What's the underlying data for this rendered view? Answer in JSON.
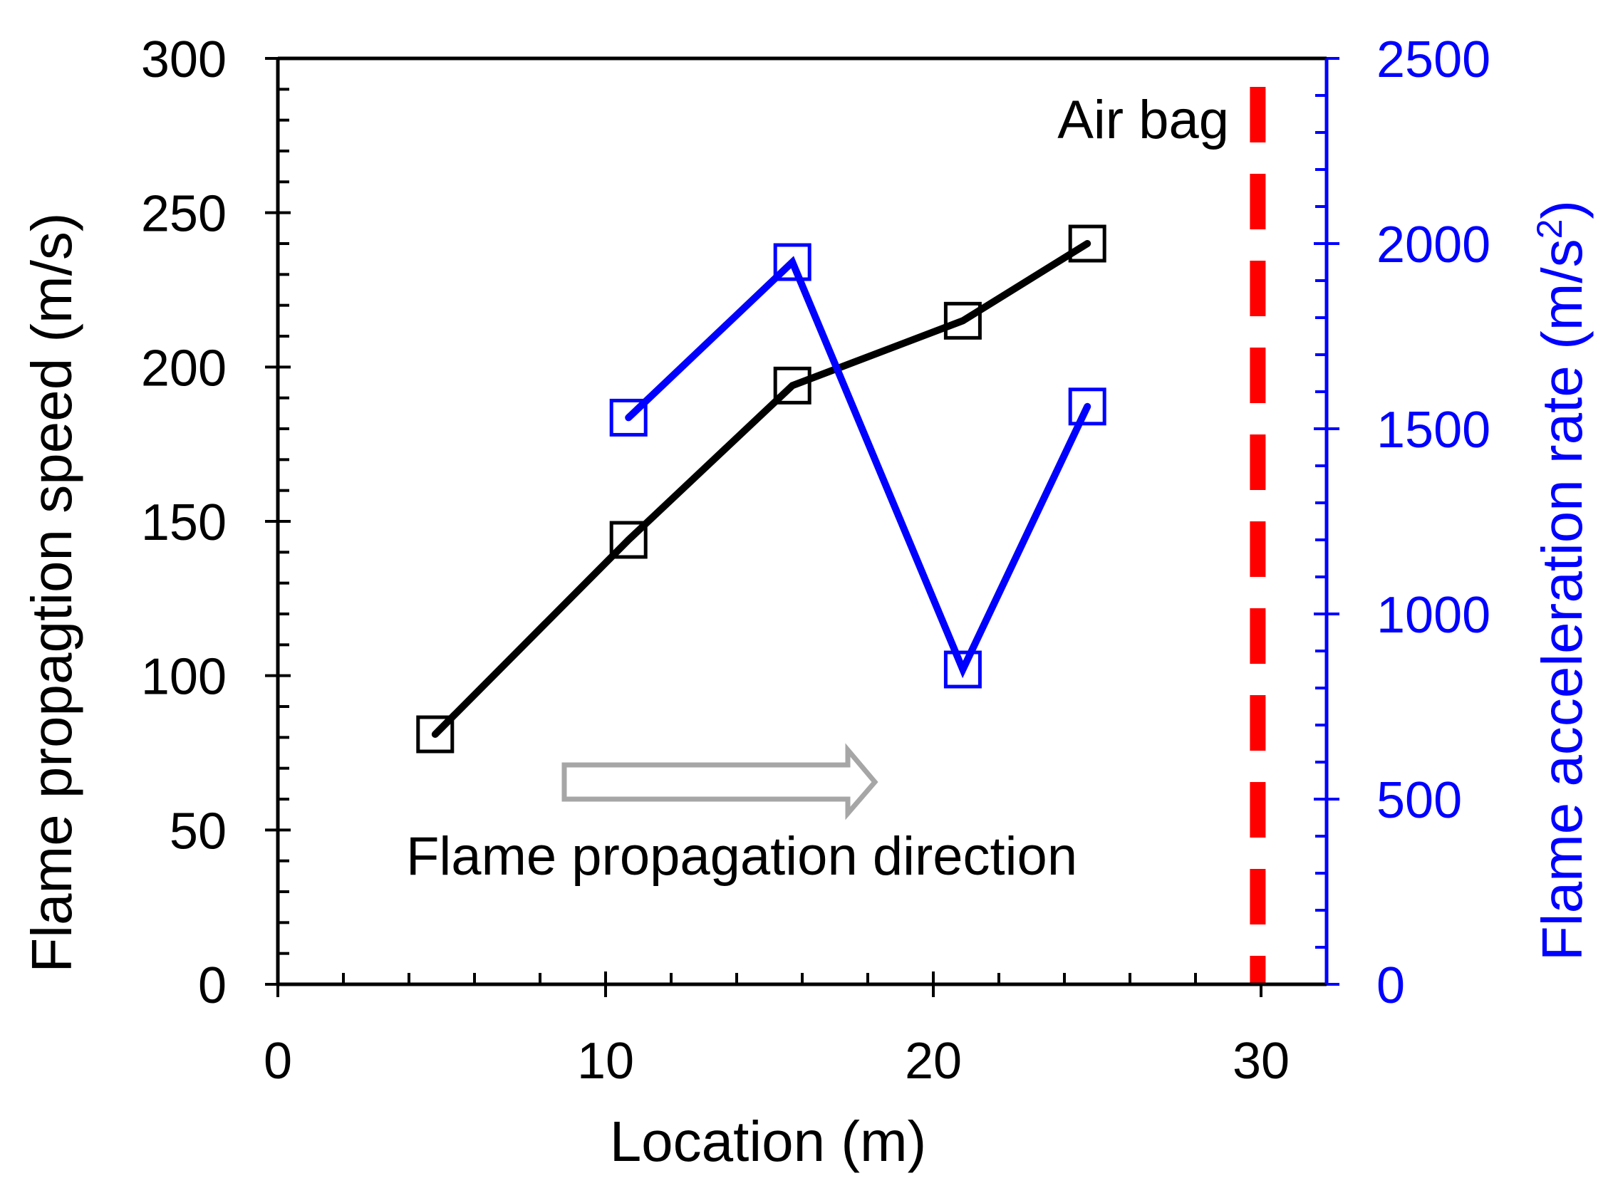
{
  "chart_data": {
    "type": "line",
    "xlabel": "Location (m)",
    "ylabel": "Flame propagtion speed (m/s)",
    "y2label_main": "Flame acceleration rate (m/s",
    "y2label_sup": "2",
    "y2label_close": ")",
    "xlim": [
      0,
      32
    ],
    "ylim": [
      0,
      300
    ],
    "y2lim": [
      0,
      2500
    ],
    "x_ticks": [
      0,
      10,
      20,
      30
    ],
    "y_ticks": [
      0,
      50,
      100,
      150,
      200,
      250,
      300
    ],
    "y2_ticks": [
      0,
      500,
      1000,
      1500,
      2000,
      2500
    ],
    "x_minor_step": 2,
    "y_minor_step": 10,
    "y2_minor_step": 100,
    "grid": false,
    "series": [
      {
        "axis": "left",
        "color": "#000000",
        "marker": "open-square",
        "x": [
          4.8,
          10.7,
          15.7,
          20.9,
          24.7
        ],
        "y": [
          81,
          144,
          194,
          215,
          240
        ]
      },
      {
        "axis": "right",
        "color": "#0000ff",
        "marker": "open-square",
        "x": [
          10.7,
          15.7,
          20.9,
          24.7
        ],
        "y": [
          1530,
          1950,
          850,
          1560
        ]
      }
    ],
    "reference_line": {
      "x": 29.9,
      "color": "#ff0000",
      "style": "dashed",
      "label": "Air bag"
    },
    "annotations": {
      "direction_text": "Flame propagation direction",
      "direction_arrow_color": "#a6a6a6"
    }
  }
}
